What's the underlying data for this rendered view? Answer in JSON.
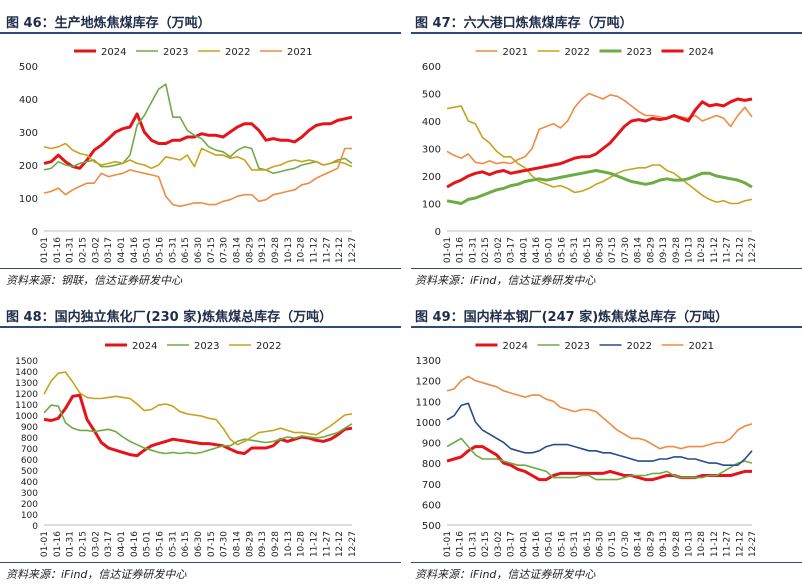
{
  "colors": {
    "2024": "#e5141b",
    "2023": "#6eab47",
    "2022": "#c9a21c",
    "2021": "#ef8b44",
    "2022_blue": "#284d8b",
    "rule": "#2e4a78",
    "title": "#1f2d4a"
  },
  "panels": [
    {
      "title": "图 46：生产地炼焦煤库存（万吨）",
      "source": "资料来源：钢联，信达证券研发中心",
      "chart_data": {
        "type": "line",
        "ylim": [
          0,
          500
        ],
        "yticks": [
          0,
          100,
          200,
          300,
          400,
          500
        ],
        "x_tick_labels": [
          "01-01",
          "01-16",
          "01-31",
          "02-15",
          "03-02",
          "03-17",
          "04-01",
          "04-16",
          "05-01",
          "05-16",
          "05-31",
          "06-15",
          "06-30",
          "07-15",
          "07-30",
          "08-14",
          "08-29",
          "09-13",
          "09-28",
          "10-13",
          "10-28",
          "11-12",
          "11-27",
          "12-12",
          "12-27"
        ],
        "legend": [
          "2024",
          "2023",
          "2022",
          "2021"
        ],
        "series": [
          {
            "name": "2024",
            "width": 3,
            "values": [
              205,
              210,
              230,
              210,
              195,
              190,
              215,
              245,
              260,
              280,
              300,
              310,
              315,
              355,
              300,
              275,
              265,
              265,
              275,
              275,
              285,
              285,
              295,
              290,
              290,
              285,
              300,
              315,
              325,
              325,
              305,
              275,
              280,
              275,
              275,
              270,
              285,
              305,
              320,
              325,
              325,
              335,
              340,
              345
            ]
          },
          {
            "name": "2023",
            "width": 1.6,
            "values": [
              185,
              190,
              210,
              200,
              195,
              205,
              210,
              215,
              195,
              195,
              200,
              205,
              230,
              320,
              350,
              390,
              430,
              445,
              345,
              345,
              305,
              290,
              280,
              255,
              245,
              240,
              225,
              245,
              255,
              250,
              190,
              185,
              175,
              180,
              185,
              190,
              200,
              205,
              210,
              200,
              205,
              215,
              220,
              205
            ]
          },
          {
            "name": "2022",
            "width": 1.6,
            "values": [
              255,
              250,
              255,
              265,
              245,
              235,
              230,
              210,
              200,
              205,
              210,
              205,
              215,
              205,
              200,
              190,
              200,
              225,
              220,
              215,
              230,
              195,
              250,
              240,
              230,
              230,
              220,
              225,
              215,
              185,
              185,
              185,
              195,
              200,
              210,
              215,
              210,
              215,
              210,
              200,
              205,
              210,
              205,
              195
            ]
          },
          {
            "name": "2021",
            "width": 1.6,
            "values": [
              115,
              120,
              130,
              110,
              125,
              135,
              145,
              145,
              175,
              165,
              170,
              175,
              185,
              180,
              175,
              170,
              165,
              105,
              80,
              75,
              80,
              85,
              85,
              80,
              80,
              90,
              95,
              105,
              110,
              110,
              90,
              95,
              110,
              115,
              120,
              125,
              140,
              145,
              160,
              170,
              180,
              190,
              250,
              250
            ]
          }
        ]
      }
    },
    {
      "title": "图 47：六大港口炼焦煤库存（万吨）",
      "source": "资料来源：iFind，信达证券研发中心",
      "chart_data": {
        "type": "line",
        "ylim": [
          0,
          600
        ],
        "yticks": [
          0,
          100,
          200,
          300,
          400,
          500,
          600
        ],
        "x_tick_labels": [
          "01-01",
          "01-16",
          "01-31",
          "02-15",
          "03-02",
          "03-17",
          "04-01",
          "04-16",
          "05-01",
          "05-16",
          "05-31",
          "06-15",
          "06-30",
          "07-15",
          "07-30",
          "08-14",
          "08-29",
          "09-13",
          "09-28",
          "10-13",
          "10-28",
          "11-12",
          "11-27",
          "12-12",
          "12-27"
        ],
        "legend": [
          "2021",
          "2022",
          "2023",
          "2024"
        ],
        "series": [
          {
            "name": "2021",
            "width": 1.6,
            "values": [
              290,
              275,
              265,
              280,
              250,
              245,
              255,
              245,
              250,
              245,
              260,
              270,
              300,
              370,
              380,
              390,
              375,
              400,
              450,
              480,
              500,
              490,
              480,
              495,
              490,
              475,
              455,
              435,
              420,
              420,
              415,
              410,
              420,
              415,
              410,
              420,
              400,
              410,
              420,
              410,
              380,
              420,
              450,
              415
            ]
          },
          {
            "name": "2022",
            "width": 1.6,
            "values": [
              445,
              450,
              455,
              400,
              390,
              340,
              320,
              290,
              270,
              270,
              245,
              230,
              200,
              180,
              170,
              160,
              165,
              155,
              140,
              145,
              155,
              170,
              180,
              195,
              210,
              220,
              225,
              230,
              230,
              240,
              240,
              220,
              210,
              190,
              170,
              150,
              130,
              115,
              105,
              110,
              100,
              100,
              110,
              115
            ]
          },
          {
            "name": "2023",
            "width": 3,
            "values": [
              110,
              105,
              100,
              115,
              120,
              130,
              140,
              150,
              155,
              165,
              170,
              180,
              185,
              190,
              185,
              190,
              195,
              200,
              205,
              210,
              215,
              220,
              215,
              210,
              200,
              190,
              180,
              175,
              170,
              175,
              185,
              190,
              185,
              185,
              190,
              200,
              210,
              210,
              200,
              195,
              190,
              185,
              175,
              160
            ]
          },
          {
            "name": "2024",
            "width": 3,
            "values": [
              160,
              175,
              185,
              200,
              210,
              215,
              205,
              215,
              220,
              210,
              215,
              220,
              225,
              230,
              235,
              240,
              245,
              255,
              265,
              270,
              270,
              280,
              300,
              320,
              350,
              380,
              400,
              405,
              400,
              410,
              405,
              410,
              420,
              410,
              400,
              440,
              470,
              455,
              460,
              455,
              470,
              480,
              475,
              480
            ]
          }
        ]
      }
    },
    {
      "title": "图 48：国内独立焦化厂(230 家)炼焦煤总库存（万吨）",
      "source": "资料来源：iFind，信达证券研发中心",
      "chart_data": {
        "type": "line",
        "ylim": [
          0,
          1500
        ],
        "yticks": [
          0,
          100,
          200,
          300,
          400,
          500,
          600,
          700,
          800,
          900,
          1000,
          1100,
          1200,
          1300,
          1400,
          1500
        ],
        "x_tick_labels": [
          "01-01",
          "01-16",
          "01-31",
          "02-15",
          "03-02",
          "03-17",
          "04-01",
          "04-16",
          "05-01",
          "05-16",
          "05-31",
          "06-15",
          "06-30",
          "07-15",
          "07-30",
          "08-14",
          "08-29",
          "09-13",
          "09-28",
          "10-13",
          "10-28",
          "11-12",
          "11-27",
          "12-12",
          "12-27"
        ],
        "legend": [
          "2024",
          "2023",
          "2022"
        ],
        "series": [
          {
            "name": "2024",
            "width": 3,
            "values": [
              960,
              950,
              970,
              1060,
              1170,
              1180,
              960,
              860,
              750,
              700,
              680,
              660,
              640,
              630,
              680,
              720,
              740,
              760,
              780,
              770,
              760,
              750,
              740,
              740,
              730,
              720,
              690,
              660,
              650,
              700,
              700,
              700,
              720,
              780,
              760,
              780,
              800,
              790,
              770,
              760,
              780,
              820,
              870,
              880
            ]
          },
          {
            "name": "2023",
            "width": 1.6,
            "values": [
              1020,
              1090,
              1080,
              930,
              880,
              860,
              860,
              850,
              860,
              870,
              850,
              800,
              760,
              730,
              700,
              680,
              660,
              650,
              660,
              650,
              660,
              650,
              660,
              680,
              700,
              720,
              720,
              760,
              780,
              770,
              760,
              750,
              760,
              780,
              800,
              790,
              810,
              800,
              790,
              800,
              820,
              840,
              880,
              920
            ]
          },
          {
            "name": "2022",
            "width": 1.6,
            "values": [
              1190,
              1310,
              1380,
              1390,
              1300,
              1200,
              1160,
              1150,
              1150,
              1160,
              1170,
              1160,
              1150,
              1100,
              1040,
              1050,
              1090,
              1100,
              1080,
              1030,
              1010,
              1000,
              990,
              970,
              960,
              880,
              780,
              730,
              760,
              800,
              840,
              850,
              860,
              880,
              860,
              840,
              840,
              830,
              820,
              860,
              900,
              950,
              1000,
              1010
            ]
          }
        ]
      }
    },
    {
      "title": "图 49：国内样本钢厂(247 家)炼焦煤总库存（万吨）",
      "source": "资料来源：iFind，信达证券研发中心",
      "chart_data": {
        "type": "line",
        "ylim": [
          500,
          1300
        ],
        "yticks": [
          500,
          600,
          700,
          800,
          900,
          1000,
          1100,
          1200,
          1300
        ],
        "x_tick_labels": [
          "01-01",
          "01-16",
          "01-31",
          "02-15",
          "03-02",
          "03-17",
          "04-01",
          "04-16",
          "05-01",
          "05-16",
          "05-31",
          "06-15",
          "06-30",
          "07-15",
          "07-30",
          "08-14",
          "08-29",
          "09-13",
          "09-28",
          "10-13",
          "10-28",
          "11-12",
          "11-27",
          "12-12",
          "12-27"
        ],
        "legend": [
          "2024",
          "2023",
          "2022",
          "2021"
        ],
        "series": [
          {
            "name": "2024",
            "width": 3,
            "values": [
              810,
              820,
              830,
              860,
              880,
              880,
              860,
              840,
              800,
              790,
              770,
              760,
              740,
              720,
              720,
              740,
              750,
              750,
              750,
              750,
              750,
              750,
              750,
              760,
              750,
              740,
              740,
              730,
              720,
              720,
              730,
              740,
              740,
              730,
              730,
              730,
              740,
              740,
              740,
              740,
              740,
              750,
              760,
              760
            ]
          },
          {
            "name": "2023",
            "width": 1.6,
            "values": [
              880,
              900,
              920,
              880,
              840,
              820,
              820,
              820,
              810,
              800,
              790,
              790,
              780,
              770,
              760,
              730,
              730,
              730,
              730,
              740,
              740,
              720,
              720,
              720,
              720,
              730,
              740,
              740,
              740,
              750,
              750,
              760,
              740,
              730,
              730,
              730,
              730,
              740,
              740,
              760,
              780,
              800,
              810,
              800
            ]
          },
          {
            "name": "2022",
            "width": 1.6,
            "values": [
              1010,
              1030,
              1080,
              1090,
              1000,
              960,
              940,
              920,
              900,
              870,
              860,
              850,
              850,
              860,
              880,
              890,
              890,
              890,
              880,
              870,
              860,
              860,
              850,
              850,
              840,
              830,
              820,
              810,
              810,
              810,
              820,
              820,
              830,
              830,
              820,
              820,
              810,
              800,
              800,
              790,
              790,
              790,
              820,
              860
            ]
          },
          {
            "name": "2021",
            "width": 1.6,
            "values": [
              1150,
              1160,
              1200,
              1220,
              1200,
              1190,
              1180,
              1170,
              1150,
              1140,
              1130,
              1120,
              1130,
              1130,
              1110,
              1100,
              1070,
              1060,
              1050,
              1060,
              1060,
              1050,
              1020,
              990,
              960,
              940,
              920,
              920,
              910,
              890,
              870,
              880,
              880,
              870,
              880,
              880,
              880,
              890,
              900,
              900,
              920,
              960,
              980,
              990
            ]
          }
        ]
      }
    }
  ]
}
